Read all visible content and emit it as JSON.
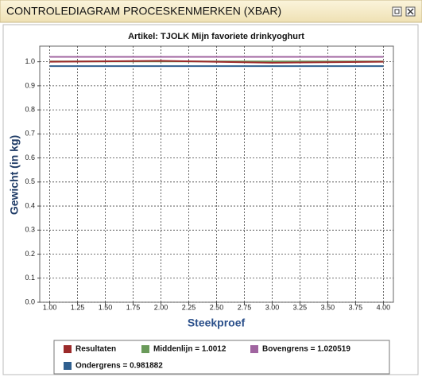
{
  "window": {
    "title": "CONTROLEDIAGRAM PROCESKENMERKEN (XBAR)"
  },
  "chart_data": {
    "type": "line",
    "title": "Artikel: TJOLK Mijn favoriete drinkyoghurt",
    "x_label": "Steekproef",
    "y_label": "Gewicht (in kg)",
    "x": [
      1,
      2,
      3,
      4
    ],
    "series": [
      {
        "name": "Resultaten",
        "color": "#9b2a2a",
        "values": [
          1.0,
          1.004,
          0.996,
          1.0
        ]
      },
      {
        "name": "Middenlijn = 1.0012",
        "color": "#6a9a5a",
        "values": [
          1.0012,
          1.0012,
          1.0012,
          1.0012
        ]
      },
      {
        "name": "Bovengrens = 1.020519",
        "color": "#a064a0",
        "values": [
          1.020519,
          1.020519,
          1.020519,
          1.020519
        ]
      },
      {
        "name": "Ondergrens = 0.981882",
        "color": "#2f5f8f",
        "values": [
          0.981882,
          0.981882,
          0.981882,
          0.981882
        ]
      }
    ],
    "xlim": [
      0.91,
      4.09
    ],
    "ylim": [
      0,
      1.065
    ],
    "xticks": [
      {
        "value": 1,
        "label": "1.00"
      },
      1.25,
      {
        "value": 1.5,
        "label": "1.50"
      },
      1.75,
      {
        "value": 2,
        "label": "2.00"
      },
      2.25,
      {
        "value": 2.5,
        "label": "2.50"
      },
      2.75,
      {
        "value": 3,
        "label": "3.00"
      },
      3.25,
      {
        "value": 3.5,
        "label": "3.50"
      },
      3.75,
      {
        "value": 4,
        "label": "4.00"
      }
    ],
    "yticks": [
      {
        "value": 0,
        "label": "0.0"
      },
      0.1,
      0.2,
      0.3,
      0.4,
      0.5,
      0.6,
      0.7,
      0.8,
      0.9,
      {
        "value": 1,
        "label": "1.0"
      }
    ],
    "grid": true,
    "legend": "bottom"
  }
}
